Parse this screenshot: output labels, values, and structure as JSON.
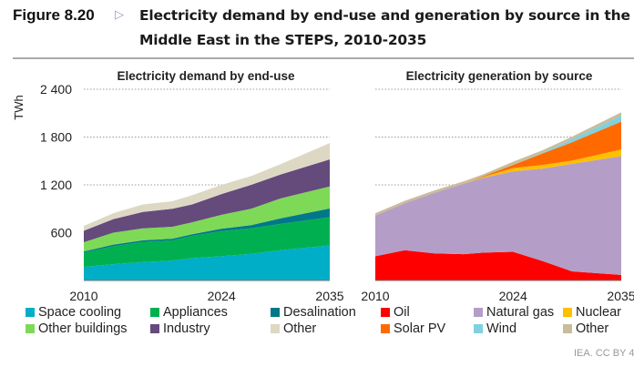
{
  "figure": {
    "label": "Figure 8.20",
    "arrow_icon": "triangle-right-icon",
    "title_line1": "Electricity demand by end-use and generation by source in the",
    "title_line2": "Middle East in the STEPS, 2010-2035",
    "credit": "IEA. CC BY 4"
  },
  "chart_data": [
    {
      "type": "area",
      "stacked": true,
      "title": "Electricity demand by end-use",
      "ylabel": "TWh",
      "xlabel": "",
      "ylim": [
        0,
        2400
      ],
      "yticks": [
        "600",
        "1 200",
        "1 800",
        "2 400"
      ],
      "ytick_values": [
        600,
        1200,
        1800,
        2400
      ],
      "xticks": [
        "2010",
        "2024",
        "2035"
      ],
      "grid": true,
      "x": [
        2010,
        2013,
        2016,
        2019,
        2021,
        2024,
        2027,
        2030,
        2035
      ],
      "series": [
        {
          "name": "Space cooling",
          "color": "#00AEC7",
          "values": [
            170,
            205,
            230,
            250,
            280,
            305,
            335,
            380,
            440
          ]
        },
        {
          "name": "Appliances",
          "color": "#00B050",
          "values": [
            180,
            225,
            255,
            255,
            280,
            315,
            320,
            330,
            355
          ]
        },
        {
          "name": "Desalination",
          "color": "#00788A",
          "values": [
            15,
            20,
            20,
            20,
            20,
            30,
            40,
            70,
            110
          ]
        },
        {
          "name": "Other buildings",
          "color": "#7ED957",
          "values": [
            115,
            150,
            150,
            150,
            150,
            175,
            205,
            250,
            275
          ]
        },
        {
          "name": "Industry",
          "color": "#654A7C",
          "values": [
            145,
            170,
            205,
            225,
            225,
            260,
            300,
            300,
            340
          ]
        },
        {
          "name": "Other",
          "color": "#DDD8C4",
          "values": [
            60,
            75,
            95,
            95,
            115,
            115,
            110,
            130,
            205
          ]
        }
      ]
    },
    {
      "type": "area",
      "stacked": true,
      "title": "Electricity generation by source",
      "ylabel": "",
      "xlabel": "",
      "ylim": [
        0,
        2400
      ],
      "xticks": [
        "2010",
        "2024",
        "2035"
      ],
      "grid": true,
      "x": [
        2010,
        2013,
        2016,
        2019,
        2021,
        2024,
        2027,
        2030,
        2035
      ],
      "series": [
        {
          "name": "Oil",
          "color": "#FF0000",
          "values": [
            305,
            380,
            340,
            330,
            350,
            360,
            245,
            115,
            70
          ]
        },
        {
          "name": "Natural gas",
          "color": "#B49EC7",
          "values": [
            510,
            590,
            760,
            885,
            940,
            1010,
            1160,
            1350,
            1490
          ]
        },
        {
          "name": "Nuclear",
          "color": "#FFC000",
          "values": [
            0,
            0,
            0,
            0,
            10,
            40,
            45,
            40,
            85
          ]
        },
        {
          "name": "Solar PV",
          "color": "#FF6A00",
          "values": [
            0,
            0,
            0,
            0,
            10,
            40,
            145,
            230,
            350
          ]
        },
        {
          "name": "Wind",
          "color": "#7FD1DF",
          "values": [
            0,
            0,
            0,
            0,
            0,
            0,
            10,
            40,
            75
          ]
        },
        {
          "name": "Other",
          "color": "#C9BC9A",
          "values": [
            30,
            30,
            30,
            30,
            25,
            40,
            30,
            30,
            40
          ]
        }
      ]
    }
  ]
}
